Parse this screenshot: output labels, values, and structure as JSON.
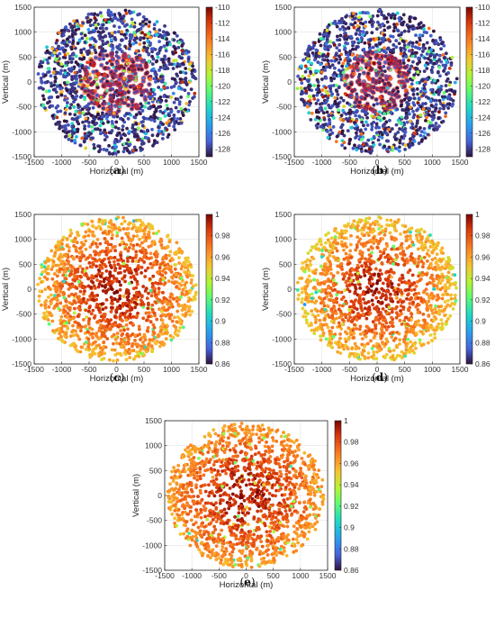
{
  "chart_data": [
    {
      "type": "scatter",
      "caption": "a",
      "xlabel": "Horizontal (m)",
      "ylabel": "Vertical (m)",
      "xlim": [
        -1500,
        1500
      ],
      "ylim": [
        -1500,
        1500
      ],
      "xticks": [
        "-1500",
        "-1000",
        "-500",
        "0",
        "500",
        "1000",
        "1500"
      ],
      "yticks": [
        "1500",
        "1000",
        "500",
        "0",
        "-500",
        "-1000",
        "-1500"
      ],
      "grid": true,
      "colorbar": {
        "min": -129,
        "max": -110,
        "colormap": "turbo",
        "ticks": [
          "-110",
          "-112",
          "-114",
          "-116",
          "-118",
          "-120",
          "-122",
          "-124",
          "-126",
          "-128"
        ]
      },
      "points": {
        "distribution": "disk",
        "radius_m": 1450,
        "count": 1500,
        "inner_marker": "red-circle",
        "inner_radius_m": 650
      }
    },
    {
      "type": "scatter",
      "caption": "b",
      "xlabel": "Horizontal (m)",
      "ylabel": "Vertical (m)",
      "xlim": [
        -1500,
        1500
      ],
      "ylim": [
        -1500,
        1500
      ],
      "xticks": [
        "-1500",
        "-1000",
        "-500",
        "0",
        "500",
        "1000",
        "1500"
      ],
      "yticks": [
        "1500",
        "1000",
        "500",
        "0",
        "-500",
        "-1000",
        "-1500"
      ],
      "grid": true,
      "colorbar": {
        "min": -129,
        "max": -110,
        "colormap": "turbo",
        "ticks": [
          "-110",
          "-112",
          "-114",
          "-116",
          "-118",
          "-120",
          "-122",
          "-124",
          "-126",
          "-128"
        ]
      },
      "points": {
        "distribution": "disk",
        "radius_m": 1450,
        "count": 1500,
        "inner_marker": "red-circle",
        "inner_radius_m": 600
      }
    },
    {
      "type": "scatter",
      "caption": "c",
      "xlabel": "Horizontal (m)",
      "ylabel": "Vertical (m)",
      "xlim": [
        -1500,
        1500
      ],
      "ylim": [
        -1500,
        1500
      ],
      "xticks": [
        "-1500",
        "-1000",
        "-500",
        "0",
        "500",
        "1000",
        "1500"
      ],
      "yticks": [
        "1500",
        "1000",
        "500",
        "0",
        "-500",
        "-1000",
        "-1500"
      ],
      "grid": true,
      "colorbar": {
        "min": 0.86,
        "max": 1,
        "colormap": "turbo",
        "ticks": [
          "1",
          "0.98",
          "0.96",
          "0.94",
          "0.92",
          "0.9",
          "0.88",
          "0.86"
        ]
      },
      "points": {
        "distribution": "disk",
        "radius_m": 1450,
        "count": 1500,
        "value_center": 0.995,
        "value_edge": 0.955
      }
    },
    {
      "type": "scatter",
      "caption": "d",
      "xlabel": "Horizontal (m)",
      "ylabel": "Vertical (m)",
      "xlim": [
        -1500,
        1500
      ],
      "ylim": [
        -1500,
        1500
      ],
      "xticks": [
        "-1500",
        "-1000",
        "-500",
        "0",
        "500",
        "1000",
        "1500"
      ],
      "yticks": [
        "1500",
        "1000",
        "500",
        "0",
        "-500",
        "-1000",
        "-1500"
      ],
      "grid": true,
      "colorbar": {
        "min": 0.86,
        "max": 1,
        "colormap": "turbo",
        "ticks": [
          "1",
          "0.98",
          "0.96",
          "0.94",
          "0.92",
          "0.9",
          "0.88",
          "0.86"
        ]
      },
      "points": {
        "distribution": "disk",
        "radius_m": 1450,
        "count": 1500,
        "value_center": 0.995,
        "value_edge": 0.95
      }
    },
    {
      "type": "scatter",
      "caption": "e",
      "xlabel": "Horizontal (m)",
      "ylabel": "Vertical (m)",
      "xlim": [
        -1500,
        1500
      ],
      "ylim": [
        -1500,
        1500
      ],
      "xticks": [
        "-1500",
        "-1000",
        "-500",
        "0",
        "500",
        "1000",
        "1500"
      ],
      "yticks": [
        "1500",
        "1000",
        "500",
        "0",
        "-500",
        "-1000",
        "-1500"
      ],
      "grid": true,
      "colorbar": {
        "min": 0.86,
        "max": 1,
        "colormap": "turbo",
        "ticks": [
          "1",
          "0.98",
          "0.96",
          "0.94",
          "0.92",
          "0.9",
          "0.88",
          "0.86"
        ]
      },
      "points": {
        "distribution": "disk",
        "radius_m": 1450,
        "count": 1500,
        "value_center": 0.995,
        "value_edge": 0.96
      }
    }
  ]
}
